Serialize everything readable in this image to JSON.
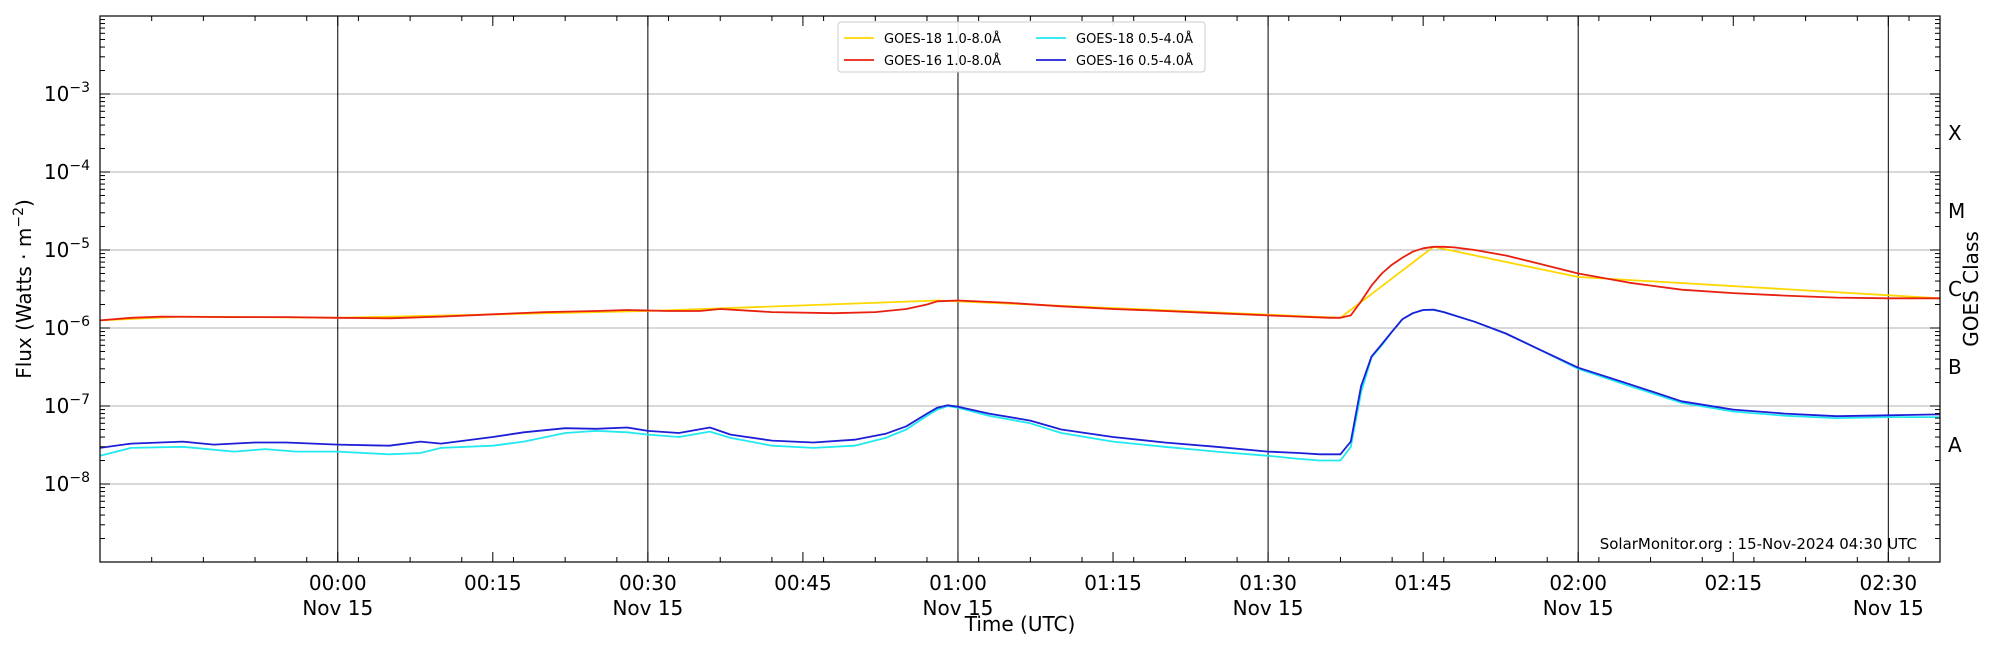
{
  "chart_data": {
    "type": "line",
    "title": "",
    "xlabel": "Time (UTC)",
    "ylabel_main": "Flux (Watts · m",
    "ylabel_sup": "−2",
    "ylabel_close": ")",
    "right_label": "GOES Class",
    "credit": "SolarMonitor.org : 15-Nov-2024 04:30 UTC",
    "y_scale": "log",
    "ylim": [
      1e-09,
      0.01
    ],
    "xlim": [
      "2024-11-14T23:37",
      "2024-11-15T02:35"
    ],
    "grid": "horizontal",
    "legend_position": "top-center",
    "y_ticks": [
      {
        "value": 1e-08,
        "base": "10",
        "exp": "−8"
      },
      {
        "value": 1e-07,
        "base": "10",
        "exp": "−7"
      },
      {
        "value": 1e-06,
        "base": "10",
        "exp": "−6"
      },
      {
        "value": 1e-05,
        "base": "10",
        "exp": "−5"
      },
      {
        "value": 0.0001,
        "base": "10",
        "exp": "−4"
      },
      {
        "value": 0.001,
        "base": "10",
        "exp": "−3"
      }
    ],
    "x_ticks": [
      {
        "time": "2024-11-15T00:00",
        "label": "00:00",
        "date": "Nov 15",
        "vline": true
      },
      {
        "time": "2024-11-15T00:15",
        "label": "00:15",
        "date": "",
        "vline": false
      },
      {
        "time": "2024-11-15T00:30",
        "label": "00:30",
        "date": "Nov 15",
        "vline": true
      },
      {
        "time": "2024-11-15T00:45",
        "label": "00:45",
        "date": "",
        "vline": false
      },
      {
        "time": "2024-11-15T01:00",
        "label": "01:00",
        "date": "Nov 15",
        "vline": true
      },
      {
        "time": "2024-11-15T01:15",
        "label": "01:15",
        "date": "",
        "vline": false
      },
      {
        "time": "2024-11-15T01:30",
        "label": "01:30",
        "date": "Nov 15",
        "vline": true
      },
      {
        "time": "2024-11-15T01:45",
        "label": "01:45",
        "date": "",
        "vline": false
      },
      {
        "time": "2024-11-15T02:00",
        "label": "02:00",
        "date": "Nov 15",
        "vline": true
      },
      {
        "time": "2024-11-15T02:15",
        "label": "02:15",
        "date": "",
        "vline": false
      },
      {
        "time": "2024-11-15T02:30",
        "label": "02:30",
        "date": "Nov 15",
        "vline": true
      }
    ],
    "goes_classes": [
      {
        "label": "A",
        "value": 3.16e-08
      },
      {
        "label": "B",
        "value": 3.16e-07
      },
      {
        "label": "C",
        "value": 3.16e-06
      },
      {
        "label": "M",
        "value": 3.16e-05
      },
      {
        "label": "X",
        "value": 0.000316
      }
    ],
    "series": [
      {
        "name": "GOES-18 1.0-8.0Å",
        "color": "#FFD700",
        "points": [
          [
            "2024-11-14T23:37",
            1.25e-06
          ],
          [
            "2024-11-14T23:45",
            1.4e-06
          ],
          [
            "2024-11-15T00:00",
            1.35e-06
          ],
          [
            "2024-11-15T00:30",
            1.65e-06
          ],
          [
            "2024-11-15T00:58",
            2.25e-06
          ],
          [
            "2024-11-15T01:37",
            1.35e-06
          ],
          [
            "2024-11-15T01:46",
            1.1e-05
          ],
          [
            "2024-11-15T02:00",
            4.5e-06
          ],
          [
            "2024-11-15T02:35",
            2.4e-06
          ]
        ]
      },
      {
        "name": "GOES-16 1.0-8.0Å",
        "color": "#E8200F",
        "points": [
          [
            "2024-11-14T23:37",
            1.25e-06
          ],
          [
            "2024-11-14T23:40",
            1.35e-06
          ],
          [
            "2024-11-14T23:43",
            1.4e-06
          ],
          [
            "2024-11-14T23:50",
            1.38e-06
          ],
          [
            "2024-11-14T23:55",
            1.38e-06
          ],
          [
            "2024-11-15T00:00",
            1.35e-06
          ],
          [
            "2024-11-15T00:05",
            1.33e-06
          ],
          [
            "2024-11-15T00:10",
            1.4e-06
          ],
          [
            "2024-11-15T00:15",
            1.5e-06
          ],
          [
            "2024-11-15T00:20",
            1.6e-06
          ],
          [
            "2024-11-15T00:25",
            1.65e-06
          ],
          [
            "2024-11-15T00:28",
            1.7e-06
          ],
          [
            "2024-11-15T00:32",
            1.65e-06
          ],
          [
            "2024-11-15T00:35",
            1.65e-06
          ],
          [
            "2024-11-15T00:37",
            1.75e-06
          ],
          [
            "2024-11-15T00:42",
            1.6e-06
          ],
          [
            "2024-11-15T00:48",
            1.55e-06
          ],
          [
            "2024-11-15T00:52",
            1.6e-06
          ],
          [
            "2024-11-15T00:55",
            1.75e-06
          ],
          [
            "2024-11-15T00:57",
            2e-06
          ],
          [
            "2024-11-15T00:58",
            2.2e-06
          ],
          [
            "2024-11-15T01:00",
            2.25e-06
          ],
          [
            "2024-11-15T01:05",
            2.1e-06
          ],
          [
            "2024-11-15T01:10",
            1.9e-06
          ],
          [
            "2024-11-15T01:15",
            1.75e-06
          ],
          [
            "2024-11-15T01:20",
            1.65e-06
          ],
          [
            "2024-11-15T01:25",
            1.55e-06
          ],
          [
            "2024-11-15T01:30",
            1.45e-06
          ],
          [
            "2024-11-15T01:33",
            1.4e-06
          ],
          [
            "2024-11-15T01:36",
            1.35e-06
          ],
          [
            "2024-11-15T01:37",
            1.35e-06
          ],
          [
            "2024-11-15T01:38",
            1.45e-06
          ],
          [
            "2024-11-15T01:39",
            2.2e-06
          ],
          [
            "2024-11-15T01:40",
            3.5e-06
          ],
          [
            "2024-11-15T01:41",
            5e-06
          ],
          [
            "2024-11-15T01:42",
            6.5e-06
          ],
          [
            "2024-11-15T01:43",
            8e-06
          ],
          [
            "2024-11-15T01:44",
            9.5e-06
          ],
          [
            "2024-11-15T01:45",
            1.05e-05
          ],
          [
            "2024-11-15T01:46",
            1.1e-05
          ],
          [
            "2024-11-15T01:47",
            1.1e-05
          ],
          [
            "2024-11-15T01:48",
            1.08e-05
          ],
          [
            "2024-11-15T01:50",
            1e-05
          ],
          [
            "2024-11-15T01:53",
            8.5e-06
          ],
          [
            "2024-11-15T01:56",
            6.8e-06
          ],
          [
            "2024-11-15T02:00",
            5e-06
          ],
          [
            "2024-11-15T02:05",
            3.8e-06
          ],
          [
            "2024-11-15T02:10",
            3.1e-06
          ],
          [
            "2024-11-15T02:15",
            2.8e-06
          ],
          [
            "2024-11-15T02:20",
            2.6e-06
          ],
          [
            "2024-11-15T02:25",
            2.45e-06
          ],
          [
            "2024-11-15T02:30",
            2.4e-06
          ],
          [
            "2024-11-15T02:35",
            2.4e-06
          ]
        ]
      },
      {
        "name": "GOES-18 0.5-4.0Å",
        "color": "#22E8F0",
        "points": [
          [
            "2024-11-14T23:37",
            2.3e-08
          ],
          [
            "2024-11-14T23:40",
            2.9e-08
          ],
          [
            "2024-11-14T23:45",
            3e-08
          ],
          [
            "2024-11-14T23:50",
            2.6e-08
          ],
          [
            "2024-11-14T23:53",
            2.8e-08
          ],
          [
            "2024-11-14T23:56",
            2.6e-08
          ],
          [
            "2024-11-15T00:00",
            2.6e-08
          ],
          [
            "2024-11-15T00:05",
            2.4e-08
          ],
          [
            "2024-11-15T00:08",
            2.5e-08
          ],
          [
            "2024-11-15T00:10",
            2.9e-08
          ],
          [
            "2024-11-15T00:15",
            3.1e-08
          ],
          [
            "2024-11-15T00:18",
            3.5e-08
          ],
          [
            "2024-11-15T00:22",
            4.5e-08
          ],
          [
            "2024-11-15T00:25",
            4.8e-08
          ],
          [
            "2024-11-15T00:28",
            4.6e-08
          ],
          [
            "2024-11-15T00:30",
            4.3e-08
          ],
          [
            "2024-11-15T00:33",
            4e-08
          ],
          [
            "2024-11-15T00:36",
            4.7e-08
          ],
          [
            "2024-11-15T00:38",
            3.9e-08
          ],
          [
            "2024-11-15T00:42",
            3.1e-08
          ],
          [
            "2024-11-15T00:46",
            2.9e-08
          ],
          [
            "2024-11-15T00:50",
            3.1e-08
          ],
          [
            "2024-11-15T00:53",
            3.9e-08
          ],
          [
            "2024-11-15T00:55",
            5e-08
          ],
          [
            "2024-11-15T00:57",
            7.5e-08
          ],
          [
            "2024-11-15T00:58",
            9e-08
          ],
          [
            "2024-11-15T00:59",
            1e-07
          ],
          [
            "2024-11-15T01:00",
            9.5e-08
          ],
          [
            "2024-11-15T01:03",
            7.5e-08
          ],
          [
            "2024-11-15T01:07",
            6e-08
          ],
          [
            "2024-11-15T01:10",
            4.5e-08
          ],
          [
            "2024-11-15T01:15",
            3.5e-08
          ],
          [
            "2024-11-15T01:20",
            3e-08
          ],
          [
            "2024-11-15T01:25",
            2.6e-08
          ],
          [
            "2024-11-15T01:30",
            2.3e-08
          ],
          [
            "2024-11-15T01:33",
            2.1e-08
          ],
          [
            "2024-11-15T01:35",
            2e-08
          ],
          [
            "2024-11-15T01:37",
            2e-08
          ],
          [
            "2024-11-15T01:38",
            3e-08
          ],
          [
            "2024-11-15T01:39",
            1.5e-07
          ],
          [
            "2024-11-15T01:40",
            4.2e-07
          ],
          [
            "2024-11-15T01:41",
            6e-07
          ],
          [
            "2024-11-15T01:42",
            9e-07
          ],
          [
            "2024-11-15T01:43",
            1.3e-06
          ],
          [
            "2024-11-15T01:44",
            1.55e-06
          ],
          [
            "2024-11-15T01:45",
            1.7e-06
          ],
          [
            "2024-11-15T01:46",
            1.7e-06
          ],
          [
            "2024-11-15T01:47",
            1.6e-06
          ],
          [
            "2024-11-15T01:50",
            1.2e-06
          ],
          [
            "2024-11-15T01:53",
            8.5e-07
          ],
          [
            "2024-11-15T01:56",
            5.5e-07
          ],
          [
            "2024-11-15T02:00",
            3e-07
          ],
          [
            "2024-11-15T02:05",
            1.8e-07
          ],
          [
            "2024-11-15T02:10",
            1.1e-07
          ],
          [
            "2024-11-15T02:15",
            8.5e-08
          ],
          [
            "2024-11-15T02:20",
            7.5e-08
          ],
          [
            "2024-11-15T02:25",
            7e-08
          ],
          [
            "2024-11-15T02:30",
            7.2e-08
          ],
          [
            "2024-11-15T02:35",
            7.2e-08
          ]
        ]
      },
      {
        "name": "GOES-16 0.5-4.0Å",
        "color": "#1E1ED8",
        "points": [
          [
            "2024-11-14T23:37",
            2.9e-08
          ],
          [
            "2024-11-14T23:40",
            3.3e-08
          ],
          [
            "2024-11-14T23:45",
            3.5e-08
          ],
          [
            "2024-11-14T23:48",
            3.2e-08
          ],
          [
            "2024-11-14T23:52",
            3.4e-08
          ],
          [
            "2024-11-14T23:55",
            3.4e-08
          ],
          [
            "2024-11-15T00:00",
            3.2e-08
          ],
          [
            "2024-11-15T00:05",
            3.1e-08
          ],
          [
            "2024-11-15T00:08",
            3.5e-08
          ],
          [
            "2024-11-15T00:10",
            3.3e-08
          ],
          [
            "2024-11-15T00:15",
            4e-08
          ],
          [
            "2024-11-15T00:18",
            4.6e-08
          ],
          [
            "2024-11-15T00:22",
            5.2e-08
          ],
          [
            "2024-11-15T00:25",
            5.1e-08
          ],
          [
            "2024-11-15T00:28",
            5.3e-08
          ],
          [
            "2024-11-15T00:30",
            4.8e-08
          ],
          [
            "2024-11-15T00:33",
            4.5e-08
          ],
          [
            "2024-11-15T00:36",
            5.3e-08
          ],
          [
            "2024-11-15T00:38",
            4.3e-08
          ],
          [
            "2024-11-15T00:42",
            3.6e-08
          ],
          [
            "2024-11-15T00:46",
            3.4e-08
          ],
          [
            "2024-11-15T00:50",
            3.7e-08
          ],
          [
            "2024-11-15T00:53",
            4.4e-08
          ],
          [
            "2024-11-15T00:55",
            5.5e-08
          ],
          [
            "2024-11-15T00:57",
            8e-08
          ],
          [
            "2024-11-15T00:58",
            9.5e-08
          ],
          [
            "2024-11-15T00:59",
            1.02e-07
          ],
          [
            "2024-11-15T01:00",
            9.8e-08
          ],
          [
            "2024-11-15T01:03",
            8e-08
          ],
          [
            "2024-11-15T01:07",
            6.5e-08
          ],
          [
            "2024-11-15T01:10",
            5e-08
          ],
          [
            "2024-11-15T01:15",
            4e-08
          ],
          [
            "2024-11-15T01:20",
            3.4e-08
          ],
          [
            "2024-11-15T01:25",
            3e-08
          ],
          [
            "2024-11-15T01:30",
            2.6e-08
          ],
          [
            "2024-11-15T01:33",
            2.5e-08
          ],
          [
            "2024-11-15T01:35",
            2.4e-08
          ],
          [
            "2024-11-15T01:37",
            2.4e-08
          ],
          [
            "2024-11-15T01:38",
            3.5e-08
          ],
          [
            "2024-11-15T01:39",
            1.8e-07
          ],
          [
            "2024-11-15T01:40",
            4.3e-07
          ],
          [
            "2024-11-15T01:41",
            6.2e-07
          ],
          [
            "2024-11-15T01:42",
            9e-07
          ],
          [
            "2024-11-15T01:43",
            1.3e-06
          ],
          [
            "2024-11-15T01:44",
            1.55e-06
          ],
          [
            "2024-11-15T01:45",
            1.7e-06
          ],
          [
            "2024-11-15T01:46",
            1.72e-06
          ],
          [
            "2024-11-15T01:47",
            1.6e-06
          ],
          [
            "2024-11-15T01:50",
            1.2e-06
          ],
          [
            "2024-11-15T01:53",
            8.5e-07
          ],
          [
            "2024-11-15T01:56",
            5.5e-07
          ],
          [
            "2024-11-15T02:00",
            3.1e-07
          ],
          [
            "2024-11-15T02:05",
            1.9e-07
          ],
          [
            "2024-11-15T02:10",
            1.15e-07
          ],
          [
            "2024-11-15T02:15",
            9e-08
          ],
          [
            "2024-11-15T02:20",
            8e-08
          ],
          [
            "2024-11-15T02:25",
            7.4e-08
          ],
          [
            "2024-11-15T02:30",
            7.6e-08
          ],
          [
            "2024-11-15T02:35",
            7.8e-08
          ]
        ]
      }
    ]
  }
}
